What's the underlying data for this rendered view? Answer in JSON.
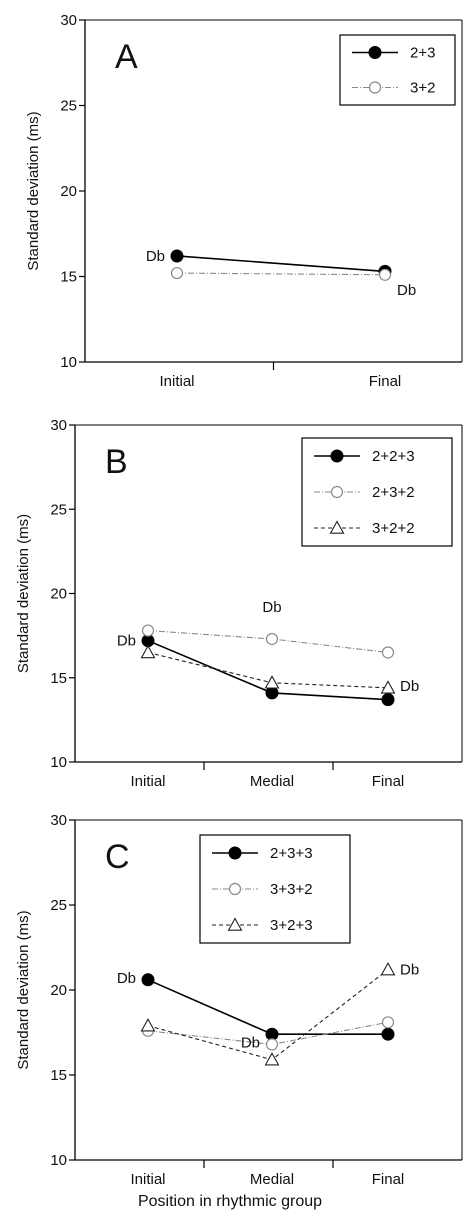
{
  "chart_data": [
    {
      "type": "line",
      "panel": "A",
      "ylabel": "Standard deviation (ms)",
      "xlabel": "",
      "ylim": [
        10,
        30
      ],
      "yticks": [
        "10",
        "15",
        "20",
        "25",
        "30"
      ],
      "categories": [
        "Initial",
        "Final"
      ],
      "legend_position": "top-right",
      "series": [
        {
          "name": "2+3",
          "marker": "filled-circle",
          "line": "solid",
          "color": "#000000",
          "values": [
            16.2,
            15.3
          ]
        },
        {
          "name": "3+2",
          "marker": "open-circle",
          "line": "dotted",
          "color": "#888888",
          "values": [
            15.2,
            15.1
          ]
        }
      ],
      "annotations": [
        {
          "text": "Db",
          "category": "Initial",
          "value": 16.2,
          "side": "left"
        },
        {
          "text": "Db",
          "category": "Final",
          "value": 14.2,
          "side": "right"
        }
      ]
    },
    {
      "type": "line",
      "panel": "B",
      "ylabel": "Standard deviation (ms)",
      "xlabel": "",
      "ylim": [
        10,
        30
      ],
      "yticks": [
        "10",
        "15",
        "20",
        "25",
        "30"
      ],
      "categories": [
        "Initial",
        "Medial",
        "Final"
      ],
      "legend_position": "top-right",
      "series": [
        {
          "name": "2+2+3",
          "marker": "filled-circle",
          "line": "solid",
          "color": "#000000",
          "values": [
            17.2,
            14.1,
            13.7
          ]
        },
        {
          "name": "2+3+2",
          "marker": "open-circle",
          "line": "dotted",
          "color": "#888888",
          "values": [
            17.8,
            17.3,
            16.5
          ]
        },
        {
          "name": "3+2+2",
          "marker": "open-triangle",
          "line": "dashed",
          "color": "#333333",
          "values": [
            16.5,
            14.7,
            14.4
          ]
        }
      ],
      "annotations": [
        {
          "text": "Db",
          "category": "Initial",
          "value": 17.2,
          "side": "left"
        },
        {
          "text": "Db",
          "category": "Medial",
          "value": 18.9,
          "side": "above"
        },
        {
          "text": "Db",
          "category": "Final",
          "value": 14.5,
          "side": "right"
        }
      ]
    },
    {
      "type": "line",
      "panel": "C",
      "ylabel": "Standard deviation (ms)",
      "xlabel": "Position in rhythmic group",
      "ylim": [
        10,
        30
      ],
      "yticks": [
        "10",
        "15",
        "20",
        "25",
        "30"
      ],
      "categories": [
        "Initial",
        "Medial",
        "Final"
      ],
      "legend_position": "top-center",
      "series": [
        {
          "name": "2+3+3",
          "marker": "filled-circle",
          "line": "solid",
          "color": "#000000",
          "values": [
            20.6,
            17.4,
            17.4
          ]
        },
        {
          "name": "3+3+2",
          "marker": "open-circle",
          "line": "dotted",
          "color": "#888888",
          "values": [
            17.6,
            16.8,
            18.1
          ]
        },
        {
          "name": "3+2+3",
          "marker": "open-triangle",
          "line": "dashed",
          "color": "#333333",
          "values": [
            17.9,
            15.9,
            21.2
          ]
        }
      ],
      "annotations": [
        {
          "text": "Db",
          "category": "Initial",
          "value": 20.7,
          "side": "left"
        },
        {
          "text": "Db",
          "category": "Medial",
          "value": 16.9,
          "side": "left"
        },
        {
          "text": "Db",
          "category": "Final",
          "value": 21.2,
          "side": "right"
        }
      ]
    }
  ]
}
